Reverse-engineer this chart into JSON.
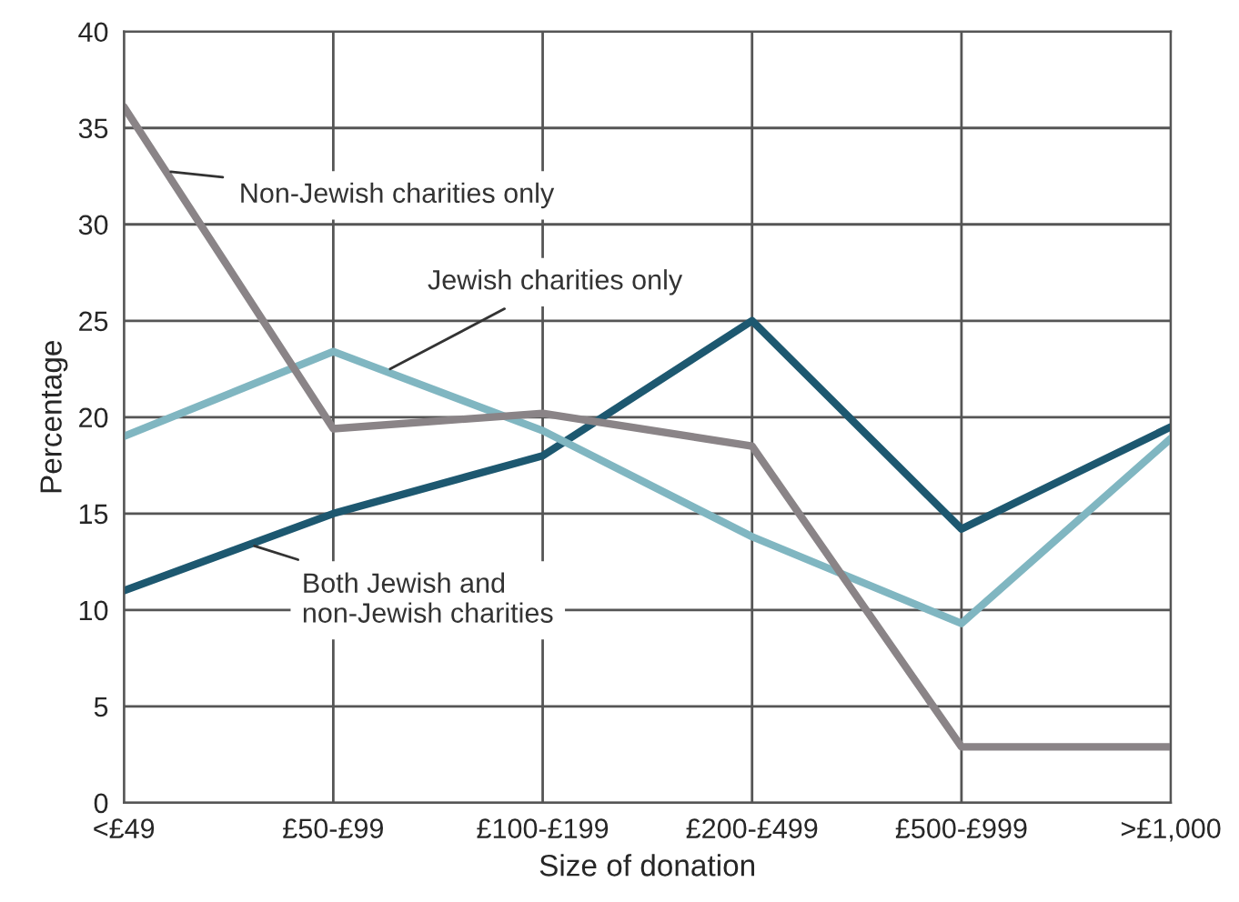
{
  "chart_data": {
    "type": "line",
    "xlabel": "Size of donation",
    "ylabel": "Percentage",
    "categories": [
      "<£49",
      "£50-£99",
      "£100-£199",
      "£200-£499",
      "£500-£999",
      ">£1,000"
    ],
    "series": [
      {
        "name": "Both Jewish and\nnon-Jewish charities",
        "color": "#1d5870",
        "values": [
          11,
          15,
          18,
          25,
          14.2,
          19.5
        ]
      },
      {
        "name": "Jewish charities only",
        "color": "#80b6c1",
        "values": [
          19,
          23.4,
          19.3,
          13.8,
          9.3,
          18.9
        ]
      },
      {
        "name": "Non-Jewish charities only",
        "color": "#8a8487",
        "values": [
          36.1,
          19.4,
          20.2,
          18.5,
          2.9,
          2.9
        ]
      }
    ],
    "ylim": [
      0,
      40
    ],
    "yticks": [
      0,
      5,
      10,
      15,
      20,
      25,
      30,
      35,
      40
    ],
    "grid": true,
    "legend": false,
    "marker": "none",
    "line_style": "solid"
  }
}
